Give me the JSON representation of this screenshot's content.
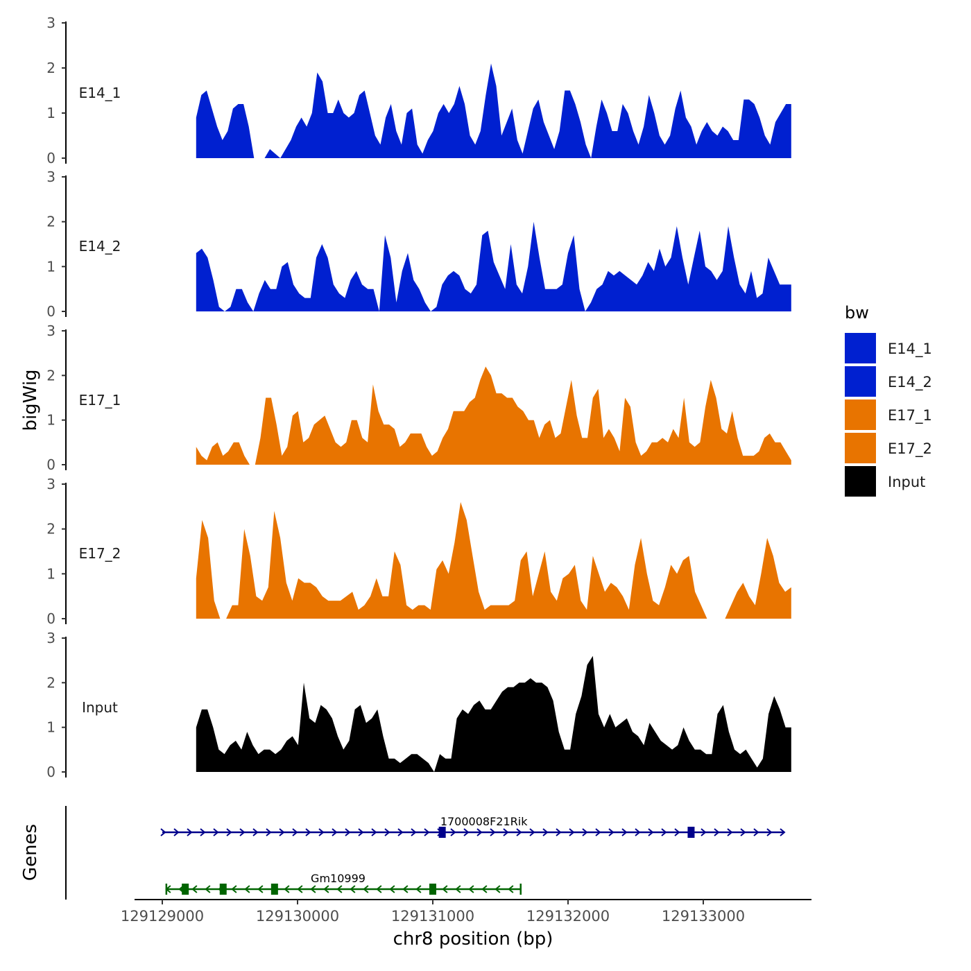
{
  "chart_data": {
    "type": "area",
    "xlabel": "chr8 position (bp)",
    "ylabel": "bigWig",
    "gene_panel_label": "Genes",
    "xlim": [
      129128800,
      129133800
    ],
    "data_range": [
      129129250,
      129133650
    ],
    "x_ticks": [
      129129000,
      129130000,
      129131000,
      129132000,
      129133000
    ],
    "x_tick_labels": [
      "129129000",
      "129130000",
      "129131000",
      "129132000",
      "129133000"
    ],
    "ylim": [
      0,
      3
    ],
    "y_ticks": [
      0,
      1,
      2,
      3
    ],
    "y_tick_labels": [
      "0",
      "1",
      "2",
      "3"
    ],
    "legend": {
      "title": "bw",
      "entries": [
        {
          "label": "E14_1",
          "color": "#0020D0"
        },
        {
          "label": "E14_2",
          "color": "#0020D0"
        },
        {
          "label": "E17_1",
          "color": "#E87400"
        },
        {
          "label": "E17_2",
          "color": "#E87400"
        },
        {
          "label": "Input",
          "color": "#000000"
        }
      ]
    },
    "series": [
      {
        "name": "E14_1",
        "color": "#0020D0",
        "values": [
          0.9,
          1.4,
          1.5,
          1.1,
          0.7,
          0.4,
          0.6,
          1.1,
          1.2,
          1.2,
          0.7,
          0.0,
          0.0,
          0.0,
          0.2,
          0.1,
          0.0,
          0.2,
          0.4,
          0.7,
          0.9,
          0.7,
          1.0,
          1.9,
          1.7,
          1.0,
          1.0,
          1.3,
          1.0,
          0.9,
          1.0,
          1.4,
          1.5,
          1.0,
          0.5,
          0.3,
          0.9,
          1.2,
          0.6,
          0.3,
          1.0,
          1.1,
          0.3,
          0.1,
          0.4,
          0.6,
          1.0,
          1.2,
          1.0,
          1.2,
          1.6,
          1.2,
          0.5,
          0.3,
          0.6,
          1.4,
          2.1,
          1.6,
          0.5,
          0.8,
          1.1,
          0.4,
          0.1,
          0.6,
          1.1,
          1.3,
          0.8,
          0.5,
          0.2,
          0.6,
          1.5,
          1.5,
          1.2,
          0.8,
          0.3,
          0.0,
          0.7,
          1.3,
          1.0,
          0.6,
          0.6,
          1.2,
          1.0,
          0.6,
          0.3,
          0.7,
          1.4,
          1.0,
          0.5,
          0.3,
          0.5,
          1.1,
          1.5,
          0.9,
          0.7,
          0.3,
          0.6,
          0.8,
          0.6,
          0.5,
          0.7,
          0.6,
          0.4,
          0.4,
          1.3,
          1.3,
          1.2,
          0.9,
          0.5,
          0.3,
          0.8,
          1.0,
          1.2,
          1.2
        ]
      },
      {
        "name": "E14_2",
        "color": "#0020D0",
        "values": [
          1.3,
          1.4,
          1.2,
          0.7,
          0.1,
          0.0,
          0.1,
          0.5,
          0.5,
          0.2,
          0.0,
          0.4,
          0.7,
          0.5,
          0.5,
          1.0,
          1.1,
          0.6,
          0.4,
          0.3,
          0.3,
          1.2,
          1.5,
          1.2,
          0.6,
          0.4,
          0.3,
          0.7,
          0.9,
          0.6,
          0.5,
          0.5,
          0.0,
          1.7,
          1.2,
          0.2,
          0.9,
          1.3,
          0.7,
          0.5,
          0.2,
          0.0,
          0.1,
          0.6,
          0.8,
          0.9,
          0.8,
          0.5,
          0.4,
          0.6,
          1.7,
          1.8,
          1.1,
          0.8,
          0.5,
          1.5,
          0.6,
          0.4,
          1.0,
          2.0,
          1.2,
          0.5,
          0.5,
          0.5,
          0.6,
          1.3,
          1.7,
          0.5,
          0.0,
          0.2,
          0.5,
          0.6,
          0.9,
          0.8,
          0.9,
          0.8,
          0.7,
          0.6,
          0.8,
          1.1,
          0.9,
          1.4,
          1.0,
          1.2,
          1.9,
          1.2,
          0.6,
          1.2,
          1.8,
          1.0,
          0.9,
          0.7,
          0.9,
          1.9,
          1.2,
          0.6,
          0.4,
          0.9,
          0.3,
          0.4,
          1.2,
          0.9,
          0.6,
          0.6,
          0.6
        ]
      },
      {
        "name": "E17_1",
        "color": "#E87400",
        "values": [
          0.4,
          0.2,
          0.1,
          0.4,
          0.5,
          0.2,
          0.3,
          0.5,
          0.5,
          0.2,
          0.0,
          0.0,
          0.6,
          1.5,
          1.5,
          0.9,
          0.2,
          0.4,
          1.1,
          1.2,
          0.5,
          0.6,
          0.9,
          1.0,
          1.1,
          0.8,
          0.5,
          0.4,
          0.5,
          1.0,
          1.0,
          0.6,
          0.5,
          1.8,
          1.2,
          0.9,
          0.9,
          0.8,
          0.4,
          0.5,
          0.7,
          0.7,
          0.7,
          0.4,
          0.2,
          0.3,
          0.6,
          0.8,
          1.2,
          1.2,
          1.2,
          1.4,
          1.5,
          1.9,
          2.2,
          2.0,
          1.6,
          1.6,
          1.5,
          1.5,
          1.3,
          1.2,
          1.0,
          1.0,
          0.6,
          0.9,
          1.0,
          0.6,
          0.7,
          1.3,
          1.9,
          1.1,
          0.6,
          0.6,
          1.5,
          1.7,
          0.6,
          0.8,
          0.6,
          0.3,
          1.5,
          1.3,
          0.5,
          0.2,
          0.3,
          0.5,
          0.5,
          0.6,
          0.5,
          0.8,
          0.6,
          1.5,
          0.5,
          0.4,
          0.5,
          1.3,
          1.9,
          1.5,
          0.8,
          0.7,
          1.2,
          0.6,
          0.2,
          0.2,
          0.2,
          0.3,
          0.6,
          0.7,
          0.5,
          0.5,
          0.3,
          0.1
        ]
      },
      {
        "name": "E17_2",
        "color": "#E87400",
        "values": [
          0.9,
          2.2,
          1.8,
          0.4,
          0.0,
          0.0,
          0.3,
          0.3,
          2.0,
          1.4,
          0.5,
          0.4,
          0.7,
          2.4,
          1.8,
          0.8,
          0.4,
          0.9,
          0.8,
          0.8,
          0.7,
          0.5,
          0.4,
          0.4,
          0.4,
          0.5,
          0.6,
          0.2,
          0.3,
          0.5,
          0.9,
          0.5,
          0.5,
          1.5,
          1.2,
          0.3,
          0.2,
          0.3,
          0.3,
          0.2,
          1.1,
          1.3,
          1.0,
          1.7,
          2.6,
          2.2,
          1.4,
          0.6,
          0.2,
          0.3,
          0.3,
          0.3,
          0.3,
          0.4,
          1.3,
          1.5,
          0.5,
          1.0,
          1.5,
          0.6,
          0.4,
          0.9,
          1.0,
          1.2,
          0.4,
          0.2,
          1.4,
          1.0,
          0.6,
          0.8,
          0.7,
          0.5,
          0.2,
          1.2,
          1.8,
          1.0,
          0.4,
          0.3,
          0.7,
          1.2,
          1.0,
          1.3,
          1.4,
          0.6,
          0.3,
          0.0,
          0.0,
          0.0,
          0.0,
          0.3,
          0.6,
          0.8,
          0.5,
          0.3,
          1.0,
          1.8,
          1.4,
          0.8,
          0.6,
          0.7
        ]
      },
      {
        "name": "Input",
        "color": "#000000",
        "values": [
          1.0,
          1.4,
          1.4,
          1.0,
          0.5,
          0.4,
          0.6,
          0.7,
          0.5,
          0.9,
          0.6,
          0.4,
          0.5,
          0.5,
          0.4,
          0.5,
          0.7,
          0.8,
          0.6,
          2.0,
          1.2,
          1.1,
          1.5,
          1.4,
          1.2,
          0.8,
          0.5,
          0.7,
          1.4,
          1.5,
          1.1,
          1.2,
          1.4,
          0.8,
          0.3,
          0.3,
          0.2,
          0.3,
          0.4,
          0.4,
          0.3,
          0.2,
          0.0,
          0.4,
          0.3,
          0.3,
          1.2,
          1.4,
          1.3,
          1.5,
          1.6,
          1.4,
          1.4,
          1.6,
          1.8,
          1.9,
          1.9,
          2.0,
          2.0,
          2.1,
          2.0,
          2.0,
          1.9,
          1.6,
          0.9,
          0.5,
          0.5,
          1.3,
          1.7,
          2.4,
          2.6,
          1.3,
          1.0,
          1.3,
          1.0,
          1.1,
          1.2,
          0.9,
          0.8,
          0.6,
          1.1,
          0.9,
          0.7,
          0.6,
          0.5,
          0.6,
          1.0,
          0.7,
          0.5,
          0.5,
          0.4,
          0.4,
          1.3,
          1.5,
          0.9,
          0.5,
          0.4,
          0.5,
          0.3,
          0.1,
          0.3,
          1.3,
          1.7,
          1.4,
          1.0,
          1.0
        ]
      }
    ],
    "genes": [
      {
        "name": "1700008F21Rik",
        "strand": "+",
        "color": "#00008B",
        "start": 129129000,
        "end": 129133600,
        "exons": [
          129131070,
          129132910
        ]
      },
      {
        "name": "Gm10999",
        "strand": "-",
        "color": "#006400",
        "start": 129129030,
        "end": 129131650,
        "exons": [
          129129170,
          129129450,
          129129830,
          129131000
        ]
      }
    ]
  }
}
